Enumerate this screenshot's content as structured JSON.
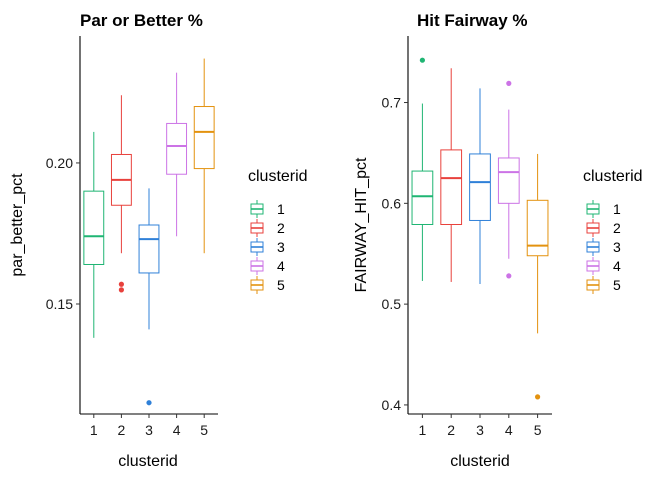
{
  "chart_data": [
    {
      "type": "boxplot",
      "title": "Par or Better %",
      "xlabel": "clusterid",
      "ylabel": "par_better_pct",
      "categories": [
        "1",
        "2",
        "3",
        "4",
        "5"
      ],
      "ylim": [
        0.111,
        0.245
      ],
      "yticks": [
        0.15,
        0.2
      ],
      "ytick_labels": [
        "0.15",
        "0.20"
      ],
      "legend": {
        "title": "clusterid",
        "placement": "right"
      },
      "series": [
        {
          "name": "1",
          "color": "#1fb573",
          "whisker_low": 0.138,
          "q1": 0.164,
          "median": 0.174,
          "q3": 0.19,
          "whisker_high": 0.211,
          "outliers": []
        },
        {
          "name": "2",
          "color": "#e8413c",
          "whisker_low": 0.168,
          "q1": 0.185,
          "median": 0.194,
          "q3": 0.203,
          "whisker_high": 0.224,
          "outliers": [
            0.157,
            0.155
          ]
        },
        {
          "name": "3",
          "color": "#2f80d8",
          "whisker_low": 0.141,
          "q1": 0.161,
          "median": 0.173,
          "q3": 0.178,
          "whisker_high": 0.191,
          "outliers": [
            0.115
          ]
        },
        {
          "name": "4",
          "color": "#cc73e6",
          "whisker_low": 0.174,
          "q1": 0.196,
          "median": 0.206,
          "q3": 0.214,
          "whisker_high": 0.232,
          "outliers": []
        },
        {
          "name": "5",
          "color": "#e3920f",
          "whisker_low": 0.168,
          "q1": 0.198,
          "median": 0.211,
          "q3": 0.22,
          "whisker_high": 0.237,
          "outliers": []
        }
      ]
    },
    {
      "type": "boxplot",
      "title": "Hit Fairway %",
      "xlabel": "clusterid",
      "ylabel": "FAIRWAY_HIT_pct",
      "categories": [
        "1",
        "2",
        "3",
        "4",
        "5"
      ],
      "ylim": [
        0.391,
        0.766
      ],
      "yticks": [
        0.4,
        0.5,
        0.6,
        0.7
      ],
      "ytick_labels": [
        "0.4",
        "0.5",
        "0.6",
        "0.7"
      ],
      "legend": {
        "title": "clusterid",
        "placement": "right"
      },
      "series": [
        {
          "name": "1",
          "color": "#1fb573",
          "whisker_low": 0.523,
          "q1": 0.579,
          "median": 0.607,
          "q3": 0.632,
          "whisker_high": 0.699,
          "outliers": [
            0.742
          ]
        },
        {
          "name": "2",
          "color": "#e8413c",
          "whisker_low": 0.522,
          "q1": 0.579,
          "median": 0.625,
          "q3": 0.653,
          "whisker_high": 0.734,
          "outliers": []
        },
        {
          "name": "3",
          "color": "#2f80d8",
          "whisker_low": 0.52,
          "q1": 0.583,
          "median": 0.621,
          "q3": 0.649,
          "whisker_high": 0.714,
          "outliers": []
        },
        {
          "name": "4",
          "color": "#cc73e6",
          "whisker_low": 0.545,
          "q1": 0.6,
          "median": 0.631,
          "q3": 0.645,
          "whisker_high": 0.693,
          "outliers": [
            0.719,
            0.528
          ]
        },
        {
          "name": "5",
          "color": "#e3920f",
          "whisker_low": 0.471,
          "q1": 0.548,
          "median": 0.558,
          "q3": 0.603,
          "whisker_high": 0.649,
          "outliers": [
            0.408
          ]
        }
      ]
    }
  ]
}
